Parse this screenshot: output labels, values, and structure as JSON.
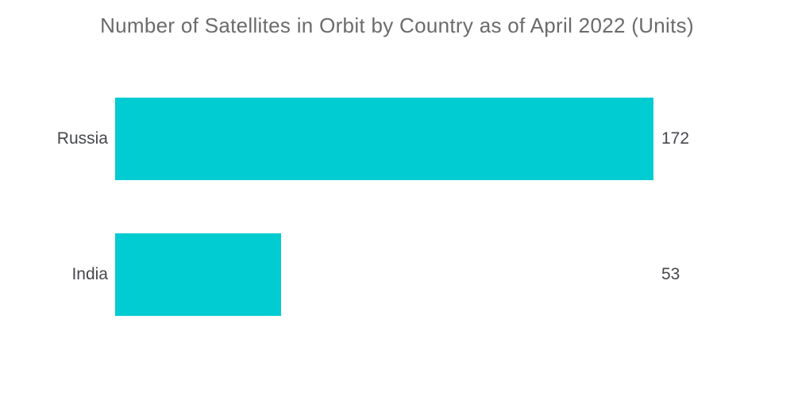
{
  "title": "Number of Satellites in Orbit by Country as of April 2022 (Units)",
  "colors": {
    "background": "#FFFFFF",
    "bar": "#00CCD2",
    "title_text": "#6B6B6B",
    "label_text": "#45474C"
  },
  "chart_data": {
    "type": "bar",
    "orientation": "horizontal",
    "title": "Number of Satellites in Orbit by Country as of April 2022 (Units)",
    "categories": [
      "Russia",
      "India"
    ],
    "values": [
      172,
      53
    ],
    "value_labels": [
      "172",
      "53"
    ],
    "xlabel": "",
    "ylabel": "",
    "xlim": [
      0,
      172
    ],
    "grid": false,
    "legend": false,
    "bar_color": "#00CCD2"
  }
}
